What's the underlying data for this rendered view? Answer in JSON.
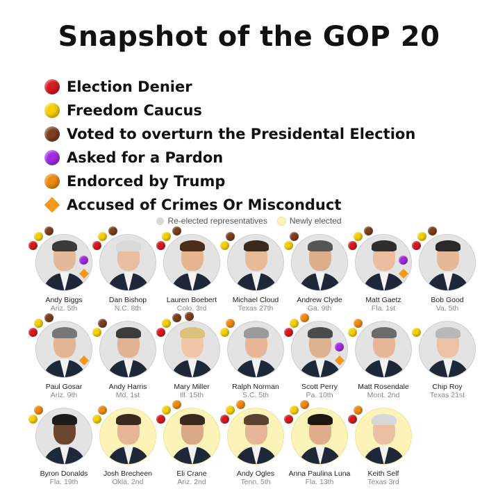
{
  "title": "Snapshot of the GOP 20",
  "colors": {
    "election_denier": "#d71920",
    "freedom_caucus": "#f6d000",
    "voted_overturn": "#7a3f1e",
    "asked_pardon": "#a12be0",
    "endorsed_trump": "#ee8a11",
    "accused": "#f39a1e",
    "reelected_bg": "#e3e3e3",
    "newly_bg": "#fbf3b8"
  },
  "legend": [
    {
      "key": "election_denier",
      "label": "Election Denier",
      "shape": "circle"
    },
    {
      "key": "freedom_caucus",
      "label": "Freedom Caucus",
      "shape": "circle"
    },
    {
      "key": "voted_overturn",
      "label": "Voted to overturn the Presidental Election",
      "shape": "circle"
    },
    {
      "key": "asked_pardon",
      "label": "Asked for a Pardon",
      "shape": "circle"
    },
    {
      "key": "endorsed_trump",
      "label": "Endorced by Trump",
      "shape": "circle"
    },
    {
      "key": "accused",
      "label": "Accused of Crimes Or Misconduct",
      "shape": "diamond"
    }
  ],
  "key": {
    "reelected": "Re-elected representatives",
    "newly": "Newly elected"
  },
  "people": [
    {
      "name": "Andy Biggs",
      "district": "Ariz. 5th",
      "status": "reelected",
      "tags": [
        "election_denier",
        "freedom_caucus",
        "voted_overturn",
        "asked_pardon",
        "accused"
      ],
      "hair": "#3b3b3b",
      "skin": "#e4b99a"
    },
    {
      "name": "Dan Bishop",
      "district": "N.C. 8th",
      "status": "reelected",
      "tags": [
        "election_denier",
        "freedom_caucus",
        "voted_overturn"
      ],
      "hair": "#d9d9d9",
      "skin": "#e9bea0"
    },
    {
      "name": "Lauren Boebert",
      "district": "Colo. 3rd",
      "status": "reelected",
      "tags": [
        "election_denier",
        "freedom_caucus",
        "voted_overturn"
      ],
      "hair": "#4a2d1a",
      "skin": "#e6b48f"
    },
    {
      "name": "Michael Cloud",
      "district": "Texas 27th",
      "status": "reelected",
      "tags": [
        "freedom_caucus",
        "voted_overturn"
      ],
      "hair": "#3a2a1e",
      "skin": "#e8bb98"
    },
    {
      "name": "Andrew Clyde",
      "district": "Ga. 9th",
      "status": "reelected",
      "tags": [
        "freedom_caucus",
        "voted_overturn"
      ],
      "hair": "#555555",
      "skin": "#dcae8c"
    },
    {
      "name": "Matt Gaetz",
      "district": "Fla. 1st",
      "status": "reelected",
      "tags": [
        "election_denier",
        "freedom_caucus",
        "voted_overturn",
        "asked_pardon",
        "accused"
      ],
      "hair": "#2e2e2e",
      "skin": "#e9bd9d"
    },
    {
      "name": "Bob Good",
      "district": "Va. 5th",
      "status": "reelected",
      "tags": [
        "election_denier",
        "freedom_caucus",
        "voted_overturn"
      ],
      "hair": "#2a2a2a",
      "skin": "#e6b898"
    },
    {
      "name": "Paul Gosar",
      "district": "Ariz. 9th",
      "status": "reelected",
      "tags": [
        "election_denier",
        "freedom_caucus",
        "voted_overturn",
        "accused"
      ],
      "hair": "#777777",
      "skin": "#e4b595"
    },
    {
      "name": "Andy Harris",
      "district": "Md. 1st",
      "status": "reelected",
      "tags": [
        "freedom_caucus",
        "voted_overturn"
      ],
      "hair": "#3c3c3c",
      "skin": "#e2b393"
    },
    {
      "name": "Mary Miller",
      "district": "Ill. 15th",
      "status": "reelected",
      "tags": [
        "election_denier",
        "freedom_caucus",
        "voted_overturn",
        "voted_overturn"
      ],
      "hair": "#dcc27e",
      "skin": "#f0c6a6"
    },
    {
      "name": "Ralph Norman",
      "district": "S.C. 5th",
      "status": "reelected",
      "tags": [
        "freedom_caucus",
        "endorsed_trump"
      ],
      "hair": "#9a9a9a",
      "skin": "#e6b696"
    },
    {
      "name": "Scott Perry",
      "district": "Pa. 10th",
      "status": "reelected",
      "tags": [
        "election_denier",
        "freedom_caucus",
        "endorsed_trump",
        "asked_pardon",
        "accused"
      ],
      "hair": "#4b4b4b",
      "skin": "#ddb090"
    },
    {
      "name": "Matt Rosendale",
      "district": "Mont. 2nd",
      "status": "reelected",
      "tags": [
        "freedom_caucus",
        "endorsed_trump"
      ],
      "hair": "#6b6b6b",
      "skin": "#e6b696"
    },
    {
      "name": "Chip Roy",
      "district": "Texas 21st",
      "status": "reelected",
      "tags": [
        "freedom_caucus"
      ],
      "hair": "#b8b8b8",
      "skin": "#ebc2a4"
    },
    {
      "name": "Byron Donalds",
      "district": "Fla. 19th",
      "status": "reelected",
      "tags": [
        "freedom_caucus",
        "endorsed_trump"
      ],
      "hair": "#1c1c1c",
      "skin": "#6b4630"
    },
    {
      "name": "Josh Brecheen",
      "district": "Okla. 2nd",
      "status": "newly",
      "tags": [
        "freedom_caucus",
        "endorsed_trump"
      ],
      "hair": "#3a2a1e",
      "skin": "#e6b696"
    },
    {
      "name": "Eli Crane",
      "district": "Ariz. 2nd",
      "status": "newly",
      "tags": [
        "election_denier",
        "freedom_caucus",
        "endorsed_trump"
      ],
      "hair": "#3a2a1e",
      "skin": "#d9a886"
    },
    {
      "name": "Andy Ogles",
      "district": "Tenn. 5th",
      "status": "newly",
      "tags": [
        "election_denier",
        "freedom_caucus",
        "endorsed_trump"
      ],
      "hair": "#5a4330",
      "skin": "#e6b696"
    },
    {
      "name": "Anna Paulina Luna",
      "district": "Fla. 13th",
      "status": "newly",
      "tags": [
        "election_denier",
        "freedom_caucus",
        "endorsed_trump"
      ],
      "hair": "#1f1510",
      "skin": "#e0ad8a"
    },
    {
      "name": "Keith Self",
      "district": "Texas 3rd",
      "status": "newly",
      "tags": [
        "election_denier",
        "endorsed_trump"
      ],
      "hair": "#d8d8d8",
      "skin": "#ebc0a2"
    }
  ]
}
